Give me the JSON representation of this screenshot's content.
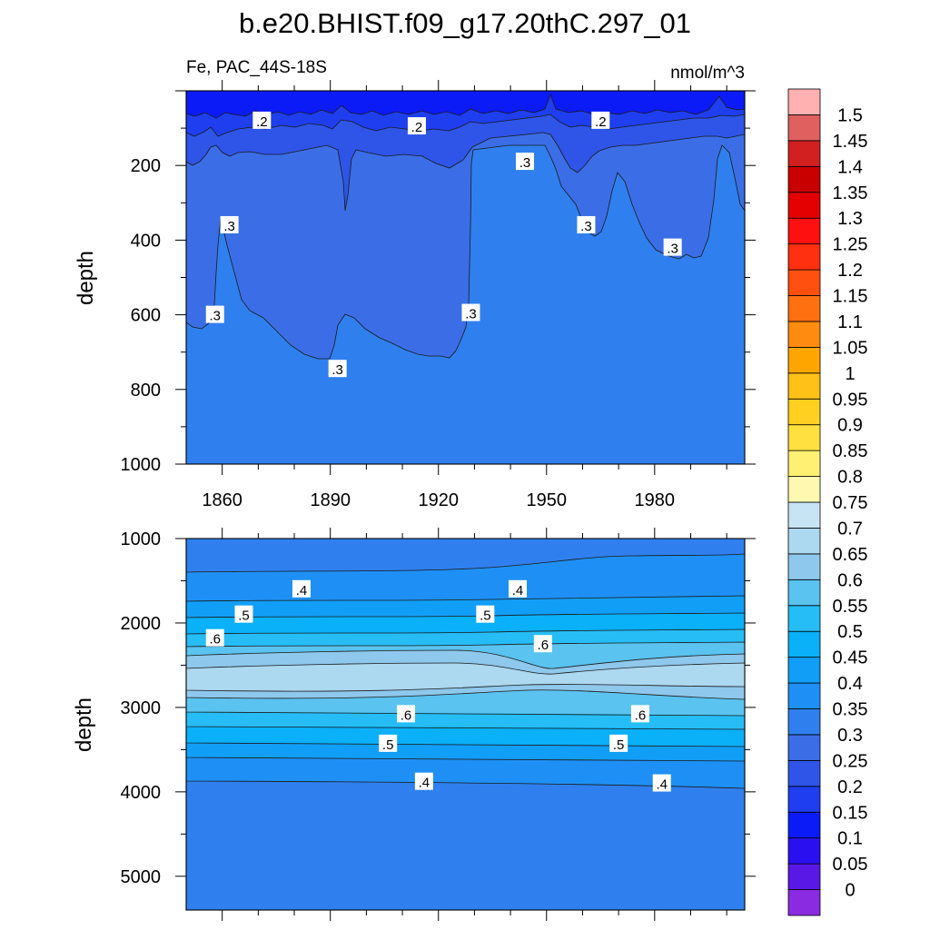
{
  "title": "b.e20.BHIST.f09_g17.20thC.297_01",
  "variable_label": "Fe, PAC_44S-18S",
  "units_label": "nmol/m^3",
  "chart_data": [
    {
      "type": "heatmap",
      "panel": "upper",
      "ylabel": "depth",
      "xlim": [
        1850,
        2005
      ],
      "ylim": [
        0,
        1000
      ],
      "y_inverted": true,
      "x_ticks": [
        1860,
        1890,
        1920,
        1950,
        1980
      ],
      "y_ticks": [
        200,
        400,
        600,
        800,
        1000
      ],
      "contour_labels": [
        {
          "text": ".2",
          "x": 1871,
          "depth": 80
        },
        {
          "text": ".2",
          "x": 1914,
          "depth": 95
        },
        {
          "text": ".2",
          "x": 1965,
          "depth": 80
        },
        {
          "text": ".3",
          "x": 1944,
          "depth": 190
        },
        {
          "text": ".3",
          "x": 1862,
          "depth": 360
        },
        {
          "text": ".3",
          "x": 1961,
          "depth": 360
        },
        {
          "text": ".3",
          "x": 1985,
          "depth": 420
        },
        {
          "text": ".3",
          "x": 1858,
          "depth": 600
        },
        {
          "text": ".3",
          "x": 1929,
          "depth": 595
        },
        {
          "text": ".3",
          "x": 1892,
          "depth": 745
        }
      ]
    },
    {
      "type": "heatmap",
      "panel": "lower",
      "ylabel": "depth",
      "xlim": [
        1850,
        2005
      ],
      "ylim": [
        1000,
        5400
      ],
      "y_inverted": true,
      "y_ticks": [
        1000,
        2000,
        3000,
        4000,
        5000
      ],
      "contour_labels": [
        {
          "text": ".4",
          "x": 1882,
          "depth": 1600
        },
        {
          "text": ".4",
          "x": 1942,
          "depth": 1600
        },
        {
          "text": ".5",
          "x": 1866,
          "depth": 1900
        },
        {
          "text": ".5",
          "x": 1933,
          "depth": 1900
        },
        {
          "text": ".6",
          "x": 1858,
          "depth": 2180
        },
        {
          "text": ".6",
          "x": 1949,
          "depth": 2250
        },
        {
          "text": ".6",
          "x": 1911,
          "depth": 3080
        },
        {
          "text": ".6",
          "x": 1976,
          "depth": 3080
        },
        {
          "text": ".5",
          "x": 1906,
          "depth": 3430
        },
        {
          "text": ".5",
          "x": 1970,
          "depth": 3430
        },
        {
          "text": ".4",
          "x": 1916,
          "depth": 3880
        },
        {
          "text": ".4",
          "x": 1982,
          "depth": 3900
        }
      ]
    }
  ],
  "colorbar": {
    "labels": [
      "0",
      "0.05",
      "0.1",
      "0.15",
      "0.2",
      "0.25",
      "0.3",
      "0.35",
      "0.4",
      "0.45",
      "0.5",
      "0.55",
      "0.6",
      "0.65",
      "0.7",
      "0.75",
      "0.8",
      "0.85",
      "0.9",
      "0.95",
      "1",
      "1.05",
      "1.1",
      "1.15",
      "1.2",
      "1.25",
      "1.3",
      "1.35",
      "1.4",
      "1.45",
      "1.5"
    ],
    "colors": [
      "#8a2be2",
      "#5a18e6",
      "#2a10f0",
      "#0b1bf7",
      "#1e3ef0",
      "#2e55e8",
      "#3b6ee6",
      "#2f80ee",
      "#1e90f5",
      "#119ef7",
      "#0ab0f8",
      "#26bdf6",
      "#5ac3f0",
      "#8ec8ec",
      "#acd8f0",
      "#c7e4f5",
      "#fff8b0",
      "#fff074",
      "#ffe040",
      "#ffd020",
      "#ffc018",
      "#ffa500",
      "#ff8c10",
      "#ff7010",
      "#ff5010",
      "#ff3010",
      "#ff1010",
      "#e40000",
      "#c80000",
      "#d22020",
      "#e06060",
      "#ffb0b0"
    ]
  }
}
